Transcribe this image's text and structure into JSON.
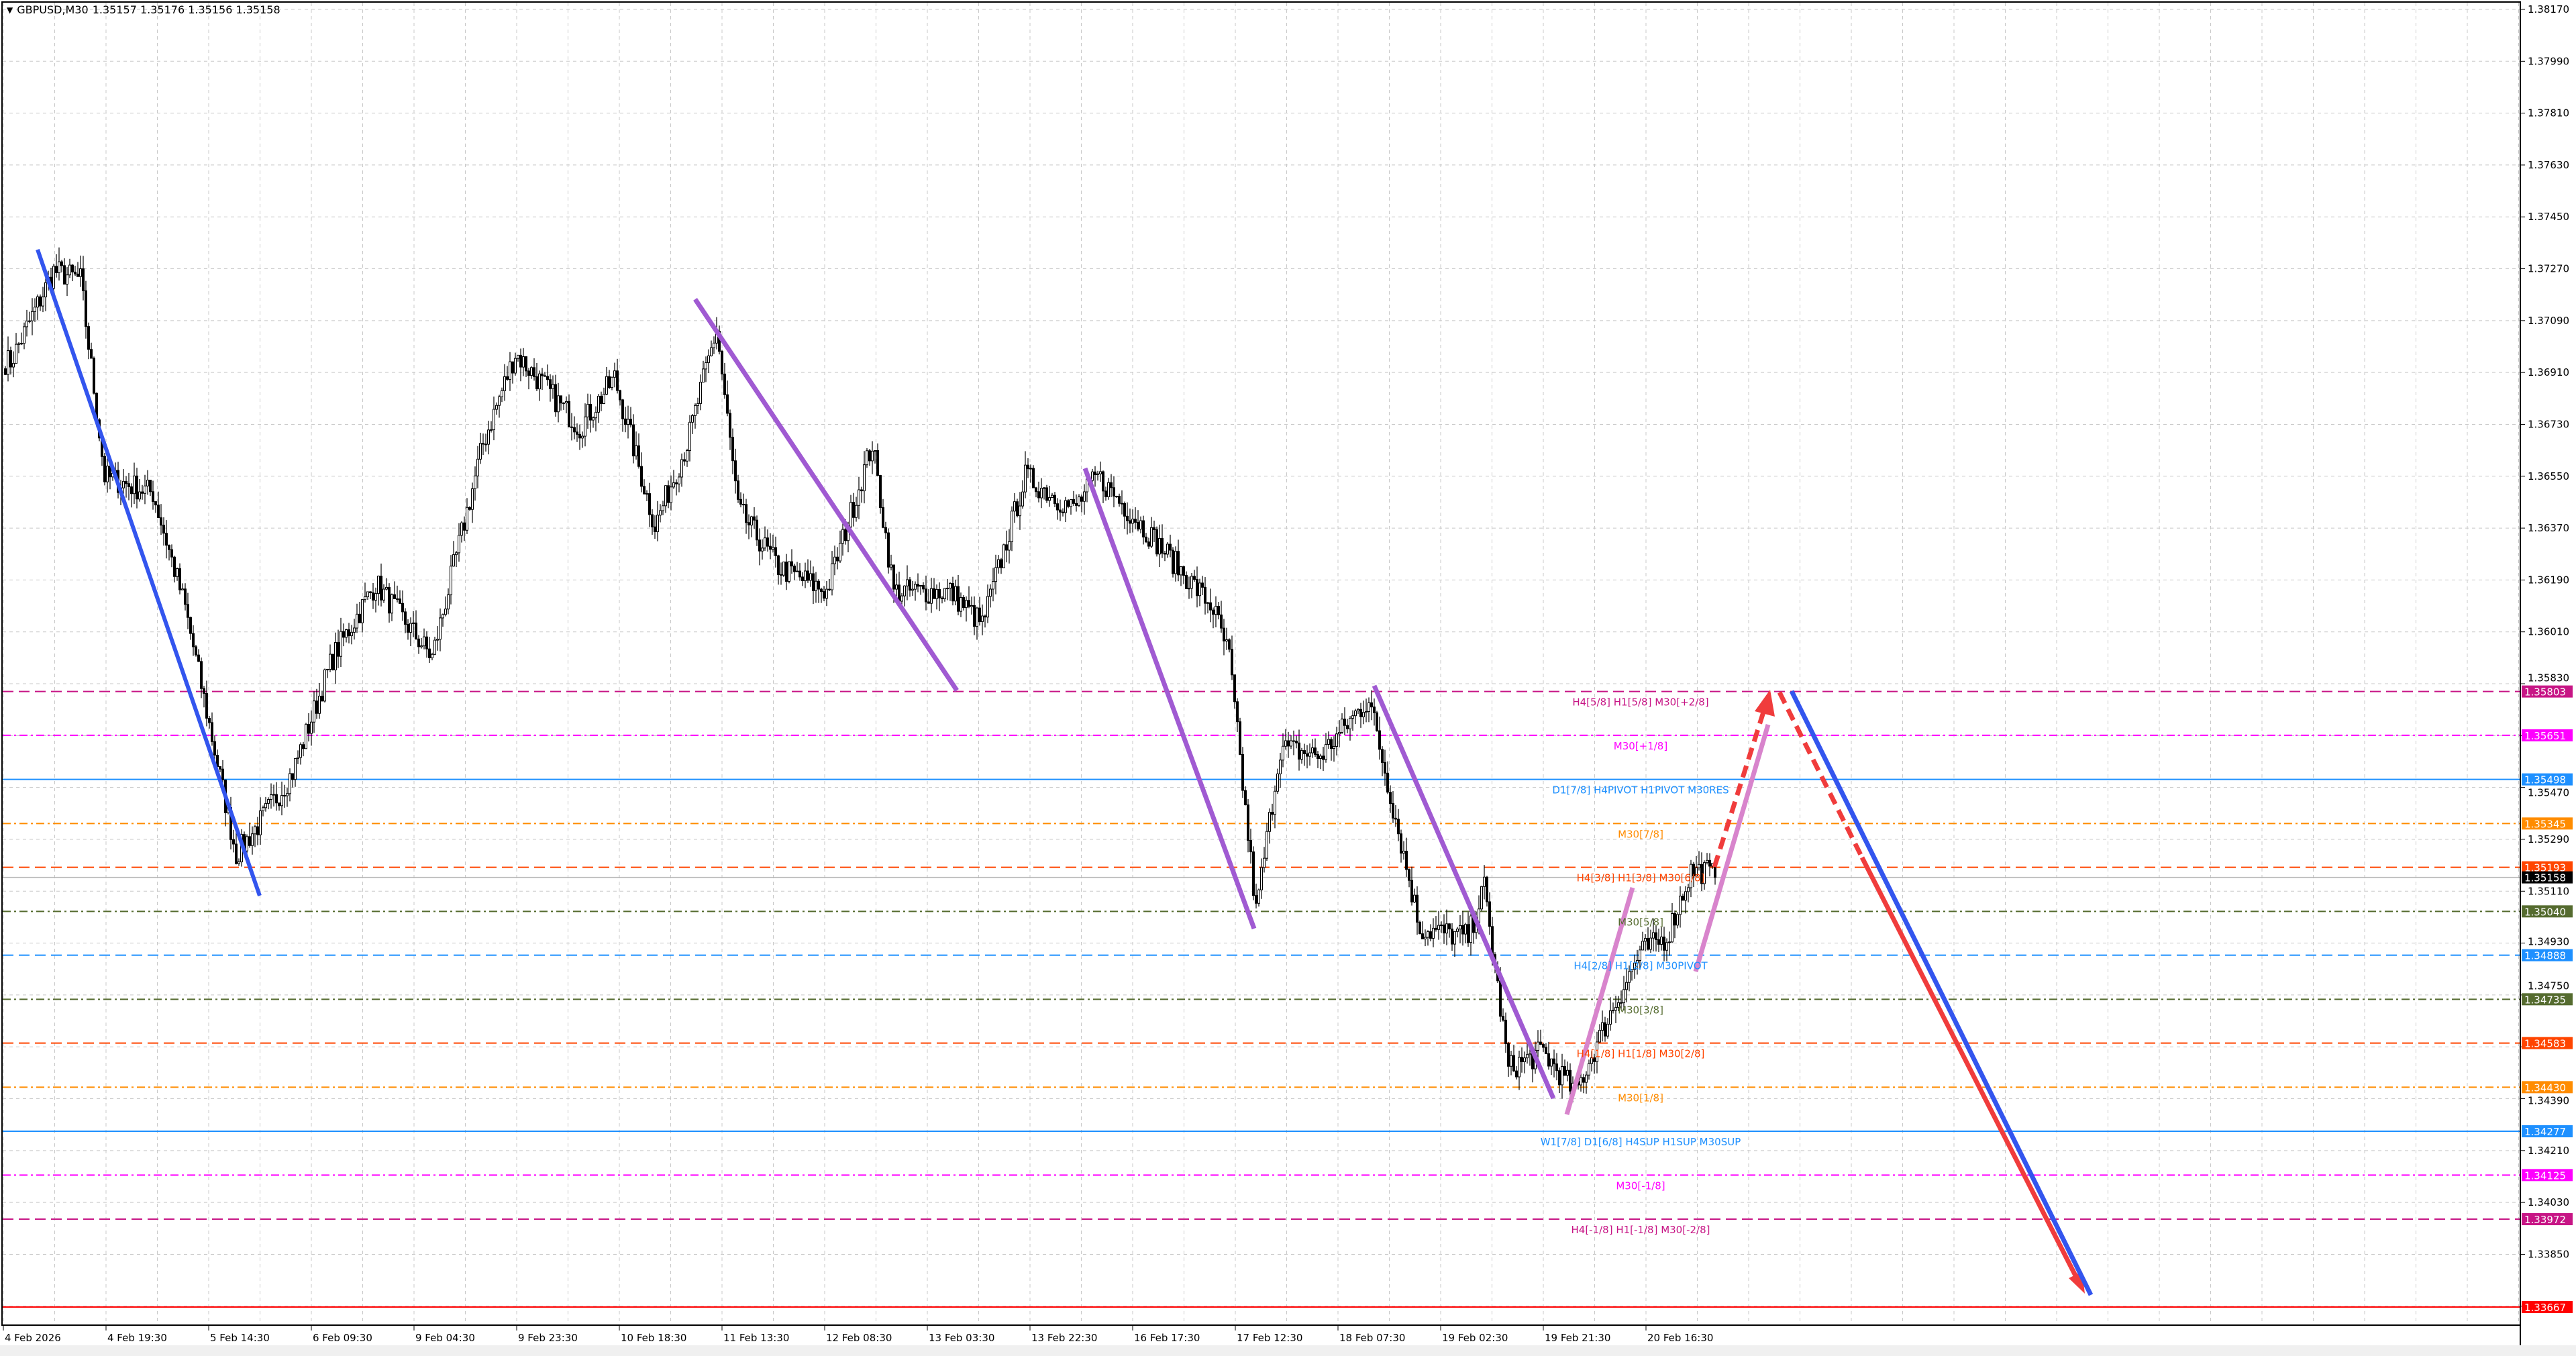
{
  "header": {
    "collapse_icon": "triangle-down-icon",
    "symbol": "GBPUSD,M30",
    "ohlc": "1.35157 1.35176 1.35156 1.35158"
  },
  "chart_data": {
    "type": "candlestick",
    "symbol": "GBPUSD",
    "timeframe": "M30",
    "ylim": [
      1.3362,
      1.382
    ],
    "grid": true,
    "y_ticks": [
      "1.38170",
      "1.37990",
      "1.37810",
      "1.37630",
      "1.37450",
      "1.37270",
      "1.37090",
      "1.36910",
      "1.36730",
      "1.36550",
      "1.36370",
      "1.36190",
      "1.36010",
      "1.35830",
      "1.35470",
      "1.35290",
      "1.35110",
      "1.34930",
      "1.34750",
      "1.34390",
      "1.34210",
      "1.34030",
      "1.33850"
    ],
    "x_ticks": [
      "4 Feb 2026",
      "4 Feb 19:30",
      "5 Feb 14:30",
      "6 Feb 09:30",
      "9 Feb 04:30",
      "9 Feb 23:30",
      "10 Feb 18:30",
      "11 Feb 13:30",
      "12 Feb 08:30",
      "13 Feb 03:30",
      "13 Feb 22:30",
      "16 Feb 17:30",
      "17 Feb 12:30",
      "18 Feb 07:30",
      "19 Feb 02:30",
      "19 Feb 21:30",
      "20 Feb 16:30"
    ],
    "approx_close_path": [
      [
        2,
        1.36948
      ],
      [
        18,
        1.37262
      ],
      [
        28,
        1.37233
      ],
      [
        37,
        1.36549
      ],
      [
        55,
        1.36492
      ],
      [
        67,
        1.36093
      ],
      [
        86,
        1.35237
      ],
      [
        95,
        1.35351
      ],
      [
        107,
        1.35522
      ],
      [
        122,
        1.35921
      ],
      [
        138,
        1.36178
      ],
      [
        159,
        1.35921
      ],
      [
        178,
        1.36663
      ],
      [
        190,
        1.36977
      ],
      [
        214,
        1.3672
      ],
      [
        227,
        1.36891
      ],
      [
        242,
        1.36378
      ],
      [
        254,
        1.36663
      ],
      [
        265,
        1.37062
      ],
      [
        273,
        1.36435
      ],
      [
        288,
        1.36235
      ],
      [
        306,
        1.3615
      ],
      [
        323,
        1.36663
      ],
      [
        331,
        1.3615
      ],
      [
        352,
        1.3615
      ],
      [
        364,
        1.36036
      ],
      [
        380,
        1.36549
      ],
      [
        398,
        1.36435
      ],
      [
        407,
        1.36549
      ],
      [
        429,
        1.36321
      ],
      [
        450,
        1.36093
      ],
      [
        456,
        1.35921
      ],
      [
        466,
        1.35037
      ],
      [
        475,
        1.35608
      ],
      [
        490,
        1.35579
      ],
      [
        508,
        1.35779
      ],
      [
        521,
        1.35237
      ],
      [
        527,
        1.3498
      ],
      [
        545,
        1.34951
      ],
      [
        551,
        1.35123
      ],
      [
        560,
        1.34495
      ],
      [
        573,
        1.34552
      ],
      [
        585,
        1.3441
      ],
      [
        597,
        1.34666
      ],
      [
        609,
        1.34895
      ],
      [
        619,
        1.34951
      ],
      [
        628,
        1.3518
      ],
      [
        634,
        1.3518
      ],
      [
        637,
        1.35158
      ]
    ],
    "current_price": {
      "value": "1.35158",
      "color": "#000000"
    },
    "levels": [
      {
        "price": "1.35803",
        "label": "H4[5/8] H1[5/8] M30[+2/8]",
        "color": "#c71585",
        "style": "dashed"
      },
      {
        "price": "1.35651",
        "label": "M30[+1/8]",
        "color": "#ff00ff",
        "style": "dashdot"
      },
      {
        "price": "1.35498",
        "label": "D1[7/8] H4PIVOT H1PIVOT M30RES",
        "color": "#1e90ff",
        "style": "solid"
      },
      {
        "price": "1.35345",
        "label": "M30[7/8]",
        "color": "#ff8c00",
        "style": "dashdot"
      },
      {
        "price": "1.35193",
        "label": "H4[3/8] H1[3/8] M30[6/8]",
        "color": "#ff4500",
        "style": "dashed"
      },
      {
        "price": "1.35040",
        "label": "M30[5/8]",
        "color": "#556b2f",
        "style": "dashdot"
      },
      {
        "price": "1.34888",
        "label": "H4[2/8] H1[2/8] M30PIVOT",
        "color": "#1e90ff",
        "style": "dashed"
      },
      {
        "price": "1.34735",
        "label": "M30[3/8]",
        "color": "#556b2f",
        "style": "dashdot"
      },
      {
        "price": "1.34583",
        "label": "H4[1/8] H1[1/8] M30[2/8]",
        "color": "#ff4500",
        "style": "dashed"
      },
      {
        "price": "1.34430",
        "label": "M30[1/8]",
        "color": "#ff8c00",
        "style": "dashdot"
      },
      {
        "price": "1.34277",
        "label": "W1[7/8] D1[6/8] H4SUP H1SUP M30SUP",
        "color": "#1e90ff",
        "style": "solid"
      },
      {
        "price": "1.34125",
        "label": "M30[-1/8]",
        "color": "#ff00ff",
        "style": "dashdot"
      },
      {
        "price": "1.33972",
        "label": "H4[-1/8] H1[-1/8] M30[-2/8]",
        "color": "#c71585",
        "style": "dashed"
      },
      {
        "price": "1.33667",
        "label": "",
        "color": "#ff0000",
        "style": "solid"
      }
    ],
    "trendline_colors": {
      "blue": "#3355ee",
      "purple": "#a05ad2",
      "pink": "#d884cc",
      "red": "#f03c3c"
    }
  }
}
